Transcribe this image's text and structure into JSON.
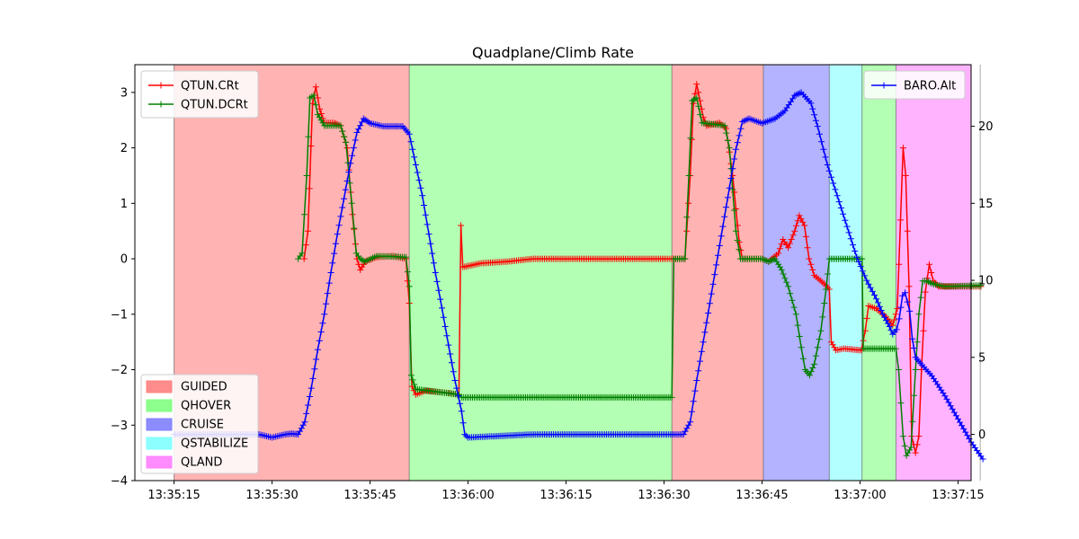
{
  "chart_data": {
    "type": "line",
    "title": "Quadplane/Climb Rate",
    "xlabel": "",
    "ylabel": "",
    "x_ticks": [
      "13:35:15",
      "13:35:30",
      "13:35:45",
      "13:36:00",
      "13:36:15",
      "13:36:30",
      "13:36:45",
      "13:37:00",
      "13:37:15"
    ],
    "x_tick_seconds": [
      15,
      30,
      45,
      60,
      75,
      90,
      105,
      120,
      135
    ],
    "x_unit_note": "seconds after 13:35:00",
    "xlim": [
      9,
      137
    ],
    "ylim_left": [
      -4,
      3.5
    ],
    "yticks_left": [
      -4,
      -3,
      -2,
      -1,
      0,
      1,
      2,
      3
    ],
    "ylim_right": [
      -3,
      24
    ],
    "yticks_right": [
      0,
      5,
      10,
      15,
      20
    ],
    "grid": false,
    "modes": [
      {
        "name": "GUIDED",
        "color": "#ff8080",
        "start": 15,
        "end": 51
      },
      {
        "name": "QHOVER",
        "color": "#80ff80",
        "start": 51,
        "end": 91.2
      },
      {
        "name": "GUIDED",
        "color": "#ff8080",
        "start": 91.2,
        "end": 105.2
      },
      {
        "name": "CRUISE",
        "color": "#8080ff",
        "start": 105.2,
        "end": 115.3
      },
      {
        "name": "QSTABILIZE",
        "color": "#80ffff",
        "start": 115.3,
        "end": 120.3
      },
      {
        "name": "QHOVER",
        "color": "#80ff80",
        "start": 120.3,
        "end": 125.5
      },
      {
        "name": "QLAND",
        "color": "#ff80ff",
        "start": 125.5,
        "end": 141
      }
    ],
    "mode_legend": [
      {
        "label": "GUIDED",
        "color": "#ff8080"
      },
      {
        "label": "QHOVER",
        "color": "#80ff80"
      },
      {
        "label": "CRUISE",
        "color": "#8080ff"
      },
      {
        "label": "QSTABILIZE",
        "color": "#80ffff"
      },
      {
        "label": "QLAND",
        "color": "#ff80ff"
      }
    ],
    "series": [
      {
        "name": "QTUN.CRt",
        "axis": "left",
        "color": "#ff0000",
        "points": [
          [
            34.9,
            0
          ],
          [
            35.5,
            0.5
          ],
          [
            36.2,
            2.8
          ],
          [
            36.7,
            3.1
          ],
          [
            37.3,
            2.7
          ],
          [
            38.0,
            2.45
          ],
          [
            39.5,
            2.45
          ],
          [
            40.5,
            2.4
          ],
          [
            41.5,
            2.0
          ],
          [
            42.3,
            0.8
          ],
          [
            43.0,
            0
          ],
          [
            43.5,
            -0.2
          ],
          [
            44.3,
            -0.05
          ],
          [
            46.0,
            0.03
          ],
          [
            48.5,
            0.05
          ],
          [
            50.5,
            0
          ],
          [
            51.0,
            -0.8
          ],
          [
            51.4,
            -2.3
          ],
          [
            52.0,
            -2.45
          ],
          [
            53.5,
            -2.38
          ],
          [
            57.0,
            -2.42
          ],
          [
            58.6,
            -2.45
          ],
          [
            58.9,
            0.6
          ],
          [
            59.2,
            -0.15
          ],
          [
            62.0,
            -0.08
          ],
          [
            66.0,
            -0.05
          ],
          [
            70.0,
            0
          ],
          [
            90.0,
            0
          ],
          [
            93.2,
            0
          ],
          [
            94.0,
            1.5
          ],
          [
            94.5,
            2.8
          ],
          [
            95.0,
            3.15
          ],
          [
            96.0,
            2.55
          ],
          [
            96.5,
            2.4
          ],
          [
            98.5,
            2.45
          ],
          [
            99.5,
            2.35
          ],
          [
            100.5,
            1.5
          ],
          [
            101.5,
            0.3
          ],
          [
            102.0,
            0
          ],
          [
            105.0,
            0
          ],
          [
            106.0,
            -0.05
          ],
          [
            107.5,
            0.1
          ],
          [
            108.2,
            0.35
          ],
          [
            109.0,
            0.2
          ],
          [
            110.0,
            0.5
          ],
          [
            110.7,
            0.78
          ],
          [
            111.5,
            0.6
          ],
          [
            112.2,
            0
          ],
          [
            113.0,
            -0.3
          ],
          [
            114.5,
            -0.45
          ],
          [
            115.3,
            -0.55
          ],
          [
            115.6,
            -1.5
          ],
          [
            116.3,
            -1.65
          ],
          [
            117.5,
            -1.62
          ],
          [
            120.2,
            -1.65
          ],
          [
            120.8,
            -1.3
          ],
          [
            121.3,
            -0.85
          ],
          [
            122.5,
            -0.9
          ],
          [
            124.0,
            -1.05
          ],
          [
            125.0,
            -1.2
          ],
          [
            125.7,
            -0.9
          ],
          [
            126.2,
            0.7
          ],
          [
            126.6,
            2.0
          ],
          [
            127.0,
            1.5
          ],
          [
            127.5,
            -0.5
          ],
          [
            127.9,
            -3.2
          ],
          [
            128.5,
            -3.5
          ],
          [
            129.0,
            -3.2
          ],
          [
            129.4,
            -2.0
          ],
          [
            130.0,
            -0.6
          ],
          [
            130.6,
            -0.1
          ],
          [
            131.2,
            -0.4
          ],
          [
            132.0,
            -0.5
          ],
          [
            134.0,
            -0.5
          ],
          [
            138.5,
            -0.5
          ]
        ]
      },
      {
        "name": "QTUN.DCRt",
        "axis": "left",
        "color": "#008000",
        "points": [
          [
            34.0,
            0
          ],
          [
            34.6,
            0.1
          ],
          [
            35.3,
            1.5
          ],
          [
            35.8,
            2.9
          ],
          [
            36.4,
            2.95
          ],
          [
            37.0,
            2.6
          ],
          [
            38.0,
            2.4
          ],
          [
            40.5,
            2.4
          ],
          [
            41.3,
            2.1
          ],
          [
            42.2,
            1.0
          ],
          [
            42.9,
            0.1
          ],
          [
            43.5,
            0
          ],
          [
            44.2,
            -0.05
          ],
          [
            46.0,
            0.05
          ],
          [
            50.5,
            0.03
          ],
          [
            51.0,
            -0.5
          ],
          [
            51.3,
            -2.1
          ],
          [
            52.0,
            -2.35
          ],
          [
            58.6,
            -2.45
          ],
          [
            59.0,
            -2.5
          ],
          [
            91.2,
            -2.5
          ],
          [
            91.5,
            0
          ],
          [
            93.2,
            0
          ],
          [
            93.8,
            1.5
          ],
          [
            94.3,
            2.85
          ],
          [
            95.0,
            2.9
          ],
          [
            95.8,
            2.45
          ],
          [
            99.3,
            2.4
          ],
          [
            100.0,
            2.0
          ],
          [
            101.0,
            0.5
          ],
          [
            101.7,
            0
          ],
          [
            105.0,
            0
          ],
          [
            106.0,
            -0.05
          ],
          [
            107.0,
            0
          ],
          [
            108.0,
            -0.2
          ],
          [
            109.0,
            -0.5
          ],
          [
            110.2,
            -1.0
          ],
          [
            111.0,
            -1.6
          ],
          [
            111.6,
            -2.0
          ],
          [
            112.3,
            -2.1
          ],
          [
            113.0,
            -1.9
          ],
          [
            114.0,
            -1.3
          ],
          [
            114.8,
            -0.55
          ],
          [
            115.3,
            0
          ],
          [
            120.3,
            0
          ],
          [
            120.5,
            -1.62
          ],
          [
            125.5,
            -1.62
          ],
          [
            125.9,
            -2.0
          ],
          [
            126.6,
            -3.2
          ],
          [
            127.1,
            -3.55
          ],
          [
            127.8,
            -3.4
          ],
          [
            128.5,
            -2.0
          ],
          [
            129.0,
            -1.0
          ],
          [
            129.6,
            -0.4
          ],
          [
            130.2,
            -0.4
          ],
          [
            131.0,
            -0.45
          ],
          [
            133.0,
            -0.5
          ],
          [
            138.5,
            -0.48
          ]
        ]
      },
      {
        "name": "BARO.Alt",
        "axis": "right",
        "color": "#0000ff",
        "points": [
          [
            15.0,
            0
          ],
          [
            28.0,
            0
          ],
          [
            30.0,
            -0.2
          ],
          [
            32.0,
            0
          ],
          [
            33.0,
            0.05
          ],
          [
            34.0,
            0
          ],
          [
            35.0,
            0.8
          ],
          [
            36.0,
            3.0
          ],
          [
            37.0,
            5.5
          ],
          [
            38.0,
            7.8
          ],
          [
            39.0,
            10.5
          ],
          [
            40.0,
            13.0
          ],
          [
            41.0,
            15.3
          ],
          [
            42.0,
            17.6
          ],
          [
            43.0,
            19.6
          ],
          [
            44.0,
            20.5
          ],
          [
            45.0,
            20.2
          ],
          [
            47.0,
            20.0
          ],
          [
            50.0,
            20.0
          ],
          [
            51.0,
            19.5
          ],
          [
            52.0,
            17.5
          ],
          [
            53.0,
            15.5
          ],
          [
            54.0,
            13.0
          ],
          [
            55.0,
            10.5
          ],
          [
            56.0,
            8.2
          ],
          [
            57.0,
            5.8
          ],
          [
            58.0,
            3.5
          ],
          [
            59.0,
            1.5
          ],
          [
            59.5,
            0
          ],
          [
            60.0,
            -0.2
          ],
          [
            70.0,
            0
          ],
          [
            89.0,
            0
          ],
          [
            93.0,
            0
          ],
          [
            94.0,
            0.8
          ],
          [
            95.0,
            3.5
          ],
          [
            96.0,
            6.0
          ],
          [
            97.0,
            8.5
          ],
          [
            98.0,
            11.0
          ],
          [
            99.0,
            13.5
          ],
          [
            100.0,
            16.0
          ],
          [
            101.0,
            18.5
          ],
          [
            102.0,
            20.3
          ],
          [
            103.0,
            20.5
          ],
          [
            105.0,
            20.2
          ],
          [
            107.0,
            20.5
          ],
          [
            108.5,
            21.0
          ],
          [
            110.0,
            22.0
          ],
          [
            111.0,
            22.2
          ],
          [
            112.5,
            21.5
          ],
          [
            113.5,
            20.0
          ],
          [
            115.0,
            17.5
          ],
          [
            116.5,
            15.5
          ],
          [
            118.0,
            13.5
          ],
          [
            119.5,
            11.5
          ],
          [
            121.0,
            10.0
          ],
          [
            122.5,
            8.8
          ],
          [
            123.5,
            7.8
          ],
          [
            124.5,
            7.0
          ],
          [
            125.0,
            6.5
          ],
          [
            125.6,
            6.8
          ],
          [
            126.0,
            7.5
          ],
          [
            126.5,
            9.0
          ],
          [
            126.9,
            9.2
          ],
          [
            127.6,
            8.0
          ],
          [
            128.0,
            6.2
          ],
          [
            128.5,
            5.0
          ],
          [
            129.5,
            4.5
          ],
          [
            131.0,
            3.8
          ],
          [
            133.0,
            2.5
          ],
          [
            135.0,
            1.0
          ],
          [
            137.0,
            -0.5
          ],
          [
            138.8,
            -1.6
          ]
        ]
      }
    ],
    "legend_left": [
      {
        "label": "QTUN.CRt",
        "color": "#ff0000"
      },
      {
        "label": "QTUN.DCRt",
        "color": "#008000"
      }
    ],
    "legend_right": [
      {
        "label": "BARO.Alt",
        "color": "#0000ff"
      }
    ],
    "legend_placement": {
      "series_left": "top-left",
      "series_right": "top-right",
      "modes": "lower-left"
    }
  }
}
